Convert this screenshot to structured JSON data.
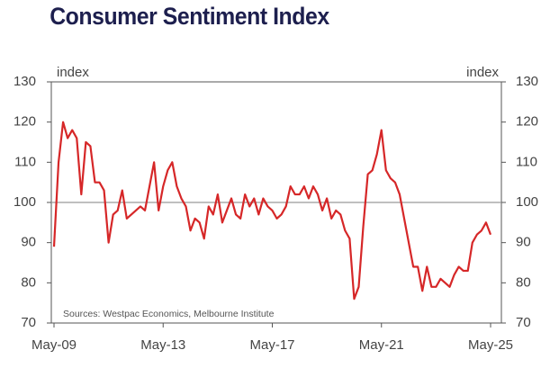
{
  "chart_data": {
    "type": "line",
    "title": "Consumer Sentiment Index",
    "y_label": "index",
    "y2_label": "index",
    "source": "Sources: Westpac Economics, Melbourne Institute",
    "categories": [
      "May-09",
      null,
      null,
      null,
      null,
      null,
      null,
      null,
      null,
      null,
      null,
      null,
      null,
      null,
      null,
      null,
      null,
      null,
      null,
      null,
      null,
      null,
      null,
      null,
      "May-13",
      null,
      null,
      null,
      null,
      null,
      null,
      null,
      null,
      null,
      null,
      null,
      null,
      null,
      null,
      null,
      null,
      null,
      null,
      null,
      null,
      null,
      null,
      null,
      "May-17",
      null,
      null,
      null,
      null,
      null,
      null,
      null,
      null,
      null,
      null,
      null,
      null,
      null,
      null,
      null,
      null,
      null,
      null,
      null,
      null,
      null,
      null,
      null,
      "May-21",
      null,
      null,
      null,
      null,
      null,
      null,
      null,
      null,
      null,
      null,
      null,
      null,
      null,
      null,
      null,
      null,
      null,
      null,
      null,
      null,
      null,
      null,
      null,
      "May-25"
    ],
    "series": [
      {
        "name": "Consumer Sentiment Index",
        "color": "#d62728",
        "values": [
          89,
          110,
          120,
          116,
          118,
          116,
          102,
          115,
          114,
          105,
          105,
          103,
          90,
          97,
          98,
          103,
          96,
          97,
          98,
          99,
          98,
          104,
          110,
          98,
          104,
          108,
          110,
          104,
          101,
          99,
          93,
          96,
          95,
          91,
          99,
          97,
          102,
          95,
          98,
          101,
          97,
          96,
          102,
          99,
          101,
          97,
          101,
          99,
          98,
          96,
          97,
          99,
          104,
          102,
          102,
          104,
          101,
          104,
          102,
          98,
          101,
          96,
          98,
          97,
          93,
          91,
          76,
          79,
          94,
          107,
          108,
          112,
          118,
          108,
          106,
          105,
          102,
          96,
          90,
          84,
          84,
          78,
          84,
          79,
          79,
          81,
          80,
          79,
          82,
          84,
          83,
          83,
          90,
          92,
          93,
          95,
          92
        ]
      }
    ],
    "ylim": [
      70,
      130
    ],
    "yticks": [
      70,
      80,
      90,
      100,
      110,
      120,
      130
    ],
    "y2lim": [
      70,
      130
    ],
    "y2ticks": [
      70,
      80,
      90,
      100,
      110,
      120,
      130
    ],
    "reference_line": 100
  }
}
